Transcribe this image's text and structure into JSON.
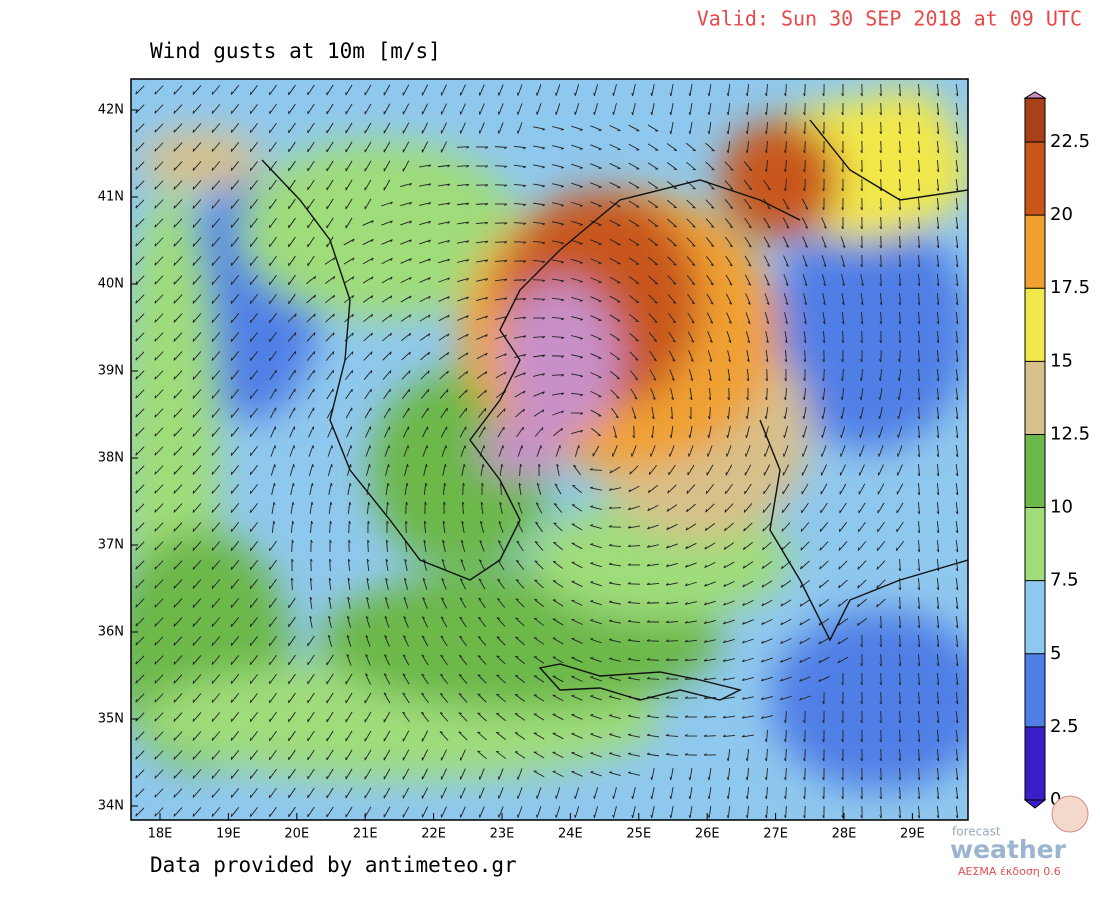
{
  "header": {
    "title": "Wind gusts at 10m [m/s]",
    "valid": "Valid: Sun 30 SEP 2018 at 09 UTC"
  },
  "map": {
    "lat_labels": [
      "42N",
      "41N",
      "40N",
      "39N",
      "38N",
      "37N",
      "36N",
      "35N",
      "34N"
    ],
    "lon_labels": [
      "18E",
      "19E",
      "20E",
      "21E",
      "22E",
      "23E",
      "24E",
      "25E",
      "26E",
      "27E",
      "28E",
      "29E"
    ]
  },
  "colorbar": {
    "ticks": [
      0,
      2.5,
      5,
      7.5,
      10,
      12.5,
      15,
      17.5,
      20,
      22.5
    ],
    "colors": [
      "#3a1ec8",
      "#4f7fe6",
      "#8fc8ee",
      "#9fdc7a",
      "#6cb848",
      "#d8c08a",
      "#f2e84a",
      "#f0a030",
      "#c8561a",
      "#a8401a",
      "#c890c8"
    ]
  },
  "footer": {
    "credit": "Data provided by antimeteo.gr"
  },
  "logo": {
    "line1": "forecast",
    "line2": "weather",
    "line3": "ΑΕΣΜΑ έκδοση 0.6"
  }
}
